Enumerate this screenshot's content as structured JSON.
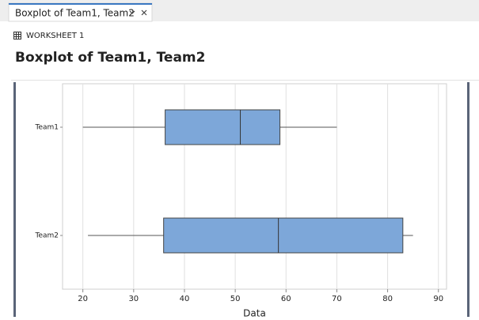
{
  "tab": {
    "title": "Boxplot of Team1, Team2"
  },
  "worksheet": {
    "label": "WORKSHEET 1"
  },
  "chart_data": {
    "type": "boxplot",
    "title": "Boxplot of Team1, Team2",
    "xlabel": "Data",
    "categories": [
      "Team1",
      "Team2"
    ],
    "boxes": [
      {
        "min": 20,
        "q1": 36.2,
        "median": 51,
        "q3": 58.8,
        "max": 70
      },
      {
        "min": 21,
        "q1": 35.9,
        "median": 58.5,
        "q3": 83,
        "max": 85
      }
    ],
    "color": "#7da7d9",
    "xlim": [
      16,
      91.6
    ],
    "xticks": [
      20,
      30,
      40,
      50,
      60,
      70,
      80,
      90
    ],
    "grid": true
  }
}
